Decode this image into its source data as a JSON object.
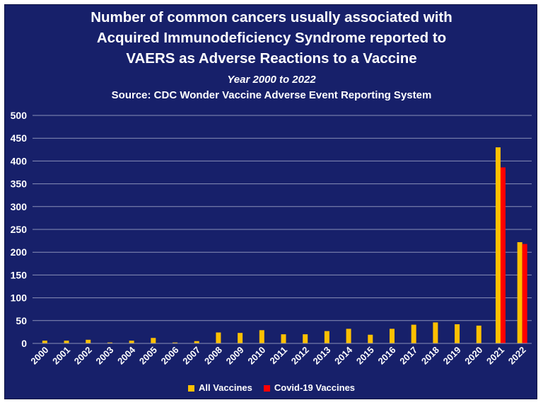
{
  "colors": {
    "background": "#17206a",
    "all_vaccines": "#ffc000",
    "covid19_vaccines": "#ff0000",
    "grid": "#8a90b8",
    "text": "#ffffff"
  },
  "chart_data": {
    "type": "bar",
    "title_lines": [
      "Number of common cancers usually associated with",
      "Acquired Immunodeficiency Syndrome reported to",
      "VAERS as Adverse Reactions to a Vaccine"
    ],
    "subtitle": "Year 2000 to 2022",
    "source": "Source: CDC Wonder Vaccine Adverse Event Reporting System",
    "xlabel": "",
    "ylabel": "",
    "ylim": [
      0,
      500
    ],
    "yticks": [
      0,
      50,
      100,
      150,
      200,
      250,
      300,
      350,
      400,
      450,
      500
    ],
    "grid": true,
    "legend_position": "bottom",
    "categories": [
      "2000",
      "2001",
      "2002",
      "2003",
      "2004",
      "2005",
      "2006",
      "2007",
      "2008",
      "2009",
      "2010",
      "2011",
      "2012",
      "2013",
      "2014",
      "2015",
      "2016",
      "2017",
      "2018",
      "2019",
      "2020",
      "2021",
      "2022"
    ],
    "series": [
      {
        "name": "All Vaccines",
        "color": "#ffc000",
        "values": [
          6,
          6,
          8,
          2,
          6,
          12,
          2,
          5,
          24,
          23,
          29,
          20,
          20,
          27,
          32,
          19,
          32,
          41,
          46,
          42,
          39,
          430,
          222
        ]
      },
      {
        "name": "Covid-19 Vaccines",
        "color": "#ff0000",
        "values": [
          null,
          null,
          null,
          null,
          null,
          null,
          null,
          null,
          null,
          null,
          null,
          null,
          null,
          null,
          null,
          null,
          null,
          null,
          null,
          null,
          null,
          386,
          218
        ]
      }
    ]
  }
}
